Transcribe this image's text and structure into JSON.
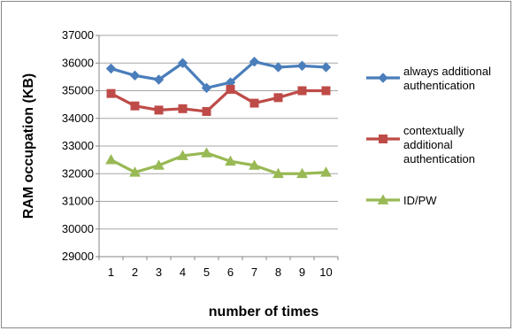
{
  "chart_data": {
    "type": "line",
    "title": "",
    "xlabel": "number of times",
    "ylabel": "RAM occupation (KB)",
    "x": [
      1,
      2,
      3,
      4,
      5,
      6,
      7,
      8,
      9,
      10
    ],
    "x_tick_labels": [
      "1",
      "2",
      "3",
      "4",
      "5",
      "6",
      "7",
      "8",
      "9",
      "10"
    ],
    "ylim": [
      29000,
      37000
    ],
    "y_ticks": [
      29000,
      30000,
      31000,
      32000,
      33000,
      34000,
      35000,
      36000,
      37000
    ],
    "y_tick_labels": [
      "29000",
      "30000",
      "31000",
      "32000",
      "33000",
      "34000",
      "35000",
      "36000",
      "37000"
    ],
    "grid": "horizontal",
    "legend_position": "right",
    "series": [
      {
        "name": "always additional authentication",
        "legend_lines": [
          "always additional",
          "authentication"
        ],
        "color": "#4A7EBB",
        "marker": "diamond",
        "values": [
          35800,
          35550,
          35400,
          36000,
          35100,
          35300,
          36050,
          35850,
          35900,
          35850
        ]
      },
      {
        "name": "contextually additional authentication",
        "legend_lines": [
          "contextually",
          "additional",
          "authentication"
        ],
        "color": "#BE4B48",
        "marker": "square",
        "values": [
          34900,
          34450,
          34300,
          34350,
          34250,
          35050,
          34550,
          34750,
          35000,
          35000
        ]
      },
      {
        "name": "ID/PW",
        "legend_lines": [
          "ID/PW"
        ],
        "color": "#98B954",
        "marker": "triangle",
        "values": [
          32500,
          32050,
          32300,
          32650,
          32750,
          32450,
          32300,
          32000,
          32000,
          32050
        ]
      }
    ]
  }
}
